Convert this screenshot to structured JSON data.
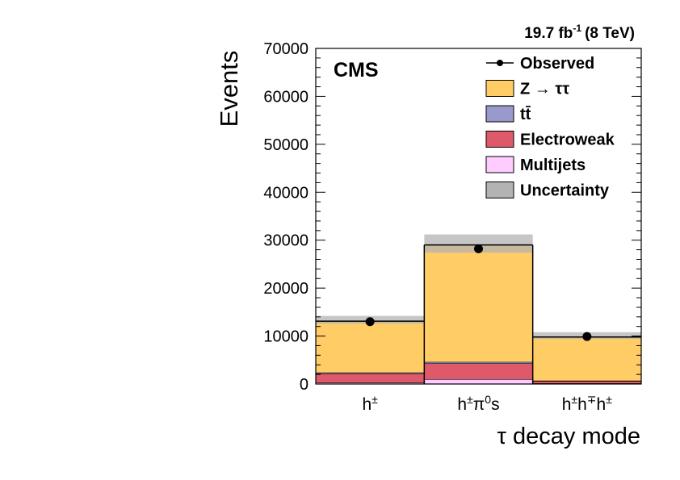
{
  "header": {
    "lumi_value": "19.7 fb",
    "lumi_exp": "-1",
    "energy": "(8 TeV)",
    "experiment": "CMS"
  },
  "chart_data": {
    "type": "bar",
    "stacked": true,
    "categories": [
      "h±",
      "h±π0s",
      "h±h∓h±"
    ],
    "category_labels": [
      {
        "base": "h",
        "sup": "±"
      },
      {
        "base": "h",
        "sup": "±",
        "mid": "π",
        "sup2": "0",
        "tail": "s"
      },
      {
        "base": "h",
        "sup": "±",
        "mid": "h",
        "sup2": "∓",
        "mid2": "h",
        "sup3": "±"
      }
    ],
    "xlabel": "τ decay mode",
    "ylabel": "Events",
    "ylim": [
      0,
      70000
    ],
    "yticks": [
      0,
      10000,
      20000,
      30000,
      40000,
      50000,
      60000,
      70000
    ],
    "legend_position": "top-right",
    "series": [
      {
        "name": "Multijets",
        "color": "#ffccff",
        "values": [
          300,
          1000,
          150
        ]
      },
      {
        "name": "Electroweak",
        "color": "#de5a6a",
        "values": [
          1900,
          3300,
          450
        ]
      },
      {
        "name": "t t̄",
        "legend": "tt̄",
        "color": "#9999cc",
        "values": [
          200,
          300,
          100
        ]
      },
      {
        "name": "Z → ττ",
        "color": "#ffcc66",
        "values": [
          10700,
          24400,
          9100
        ]
      }
    ],
    "uncertainty": {
      "name": "Uncertainty",
      "color": "#b3b3b3",
      "low": [
        12600,
        27400,
        9400
      ],
      "high": [
        14200,
        31200,
        10800
      ]
    },
    "observed": {
      "name": "Observed",
      "values": [
        13000,
        28200,
        9900
      ]
    },
    "legend": [
      {
        "label": "Observed",
        "kind": "marker"
      },
      {
        "label": "Z  →  ττ",
        "kind": "box",
        "color": "#ffcc66"
      },
      {
        "label": "tt̄",
        "kind": "box",
        "color": "#9999cc"
      },
      {
        "label": "Electroweak",
        "kind": "box",
        "color": "#de5a6a"
      },
      {
        "label": "Multijets",
        "kind": "box",
        "color": "#ffccff"
      },
      {
        "label": "Uncertainty",
        "kind": "box",
        "color": "#b3b3b3"
      }
    ]
  }
}
